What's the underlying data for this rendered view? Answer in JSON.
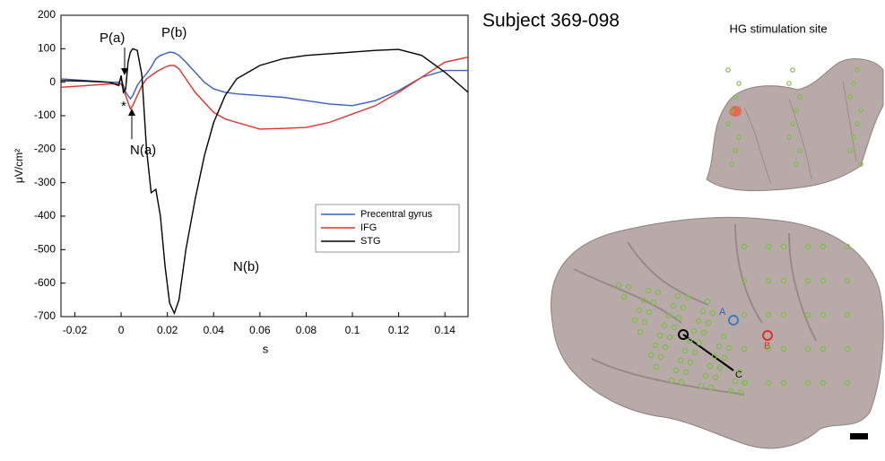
{
  "chart_data": {
    "type": "line",
    "title": "Subject 369-098",
    "subtitle": "HG stimulation site",
    "x_label": "s",
    "y_label": "μV/cm²",
    "x": [
      -0.026,
      -0.015,
      -0.005,
      -0.001,
      0,
      0.001,
      0.002,
      0.003,
      0.004,
      0.005,
      0.007,
      0.009,
      0.011,
      0.013,
      0.015,
      0.017,
      0.019,
      0.021,
      0.023,
      0.025,
      0.028,
      0.032,
      0.036,
      0.04,
      0.045,
      0.05,
      0.06,
      0.07,
      0.08,
      0.09,
      0.1,
      0.11,
      0.12,
      0.13,
      0.14,
      0.15
    ],
    "series": [
      {
        "name": "Precentral gyrus",
        "color": "#3a5fbf",
        "values": [
          10,
          5,
          0,
          0,
          10,
          -10,
          -30,
          -40,
          -50,
          -40,
          -10,
          10,
          25,
          45,
          70,
          80,
          85,
          90,
          88,
          80,
          60,
          30,
          0,
          -20,
          -30,
          -35,
          -40,
          -45,
          -55,
          -65,
          -70,
          -55,
          -25,
          15,
          35,
          35
        ]
      },
      {
        "name": "IFG",
        "color": "#e0302a",
        "values": [
          -15,
          -10,
          -5,
          -5,
          -5,
          -20,
          -40,
          -60,
          -80,
          -70,
          -40,
          -10,
          10,
          20,
          30,
          38,
          45,
          50,
          50,
          40,
          10,
          -30,
          -60,
          -90,
          -110,
          -120,
          -140,
          -138,
          -135,
          -120,
          -95,
          -70,
          -30,
          15,
          60,
          75
        ]
      },
      {
        "name": "STG",
        "color": "#000000",
        "values": [
          5,
          3,
          0,
          -10,
          20,
          -30,
          -20,
          60,
          90,
          100,
          95,
          20,
          -200,
          -330,
          -320,
          -400,
          -550,
          -660,
          -690,
          -650,
          -500,
          -350,
          -220,
          -120,
          -40,
          10,
          50,
          70,
          80,
          85,
          90,
          95,
          98,
          80,
          30,
          -30
        ]
      }
    ],
    "xlim": [
      -0.026,
      0.15
    ],
    "ylim": [
      -700,
      200
    ],
    "xticks": [
      -0.02,
      0,
      0.02,
      0.04,
      0.06,
      0.08,
      0.1,
      0.12,
      0.14
    ],
    "yticks": [
      -700,
      -600,
      -500,
      -400,
      -300,
      -200,
      -100,
      0,
      100,
      200
    ],
    "annotations": [
      "P(a)",
      "P(b)",
      "N(a)",
      "N(b)",
      "*"
    ],
    "site_labels": [
      "A",
      "B",
      "C"
    ]
  }
}
